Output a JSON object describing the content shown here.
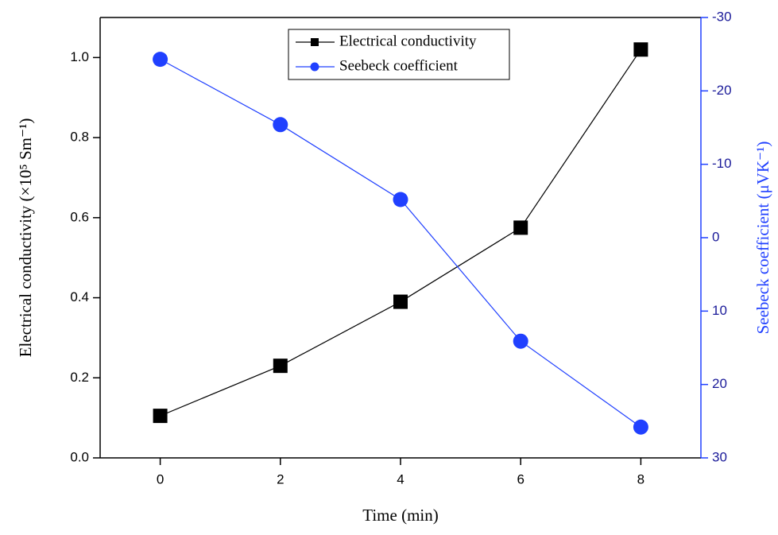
{
  "chart_data": {
    "type": "line",
    "x_label": "Time (min)",
    "y_label": "Electrical conductivity (×10⁵ Sm⁻¹)",
    "y2_label": "Seebeck coefficient (μVK⁻¹)",
    "x": [
      0,
      2,
      4,
      6,
      8
    ],
    "series": [
      {
        "name": "Electrical conductivity",
        "color": "#000000",
        "marker": "square",
        "values": [
          0.105,
          0.23,
          0.39,
          0.575,
          1.02
        ]
      },
      {
        "name": "Seebeck coefficient",
        "color": "#2040ff",
        "marker": "circle",
        "axis": "y2",
        "values": [
          -24.3,
          -15.4,
          -5.2,
          14.1,
          25.8
        ]
      }
    ],
    "xlim": [
      -1,
      9
    ],
    "xticks": [
      0,
      2,
      4,
      6,
      8
    ],
    "ylim": [
      0,
      1.1
    ],
    "yticks": [
      {
        "value": 0,
        "label": "0.0"
      },
      0.2,
      0.4,
      0.6,
      0.8,
      {
        "value": 1,
        "label": "1.0"
      }
    ],
    "y2lim": [
      30,
      -30
    ],
    "y2ticks": [
      -30,
      -20,
      -10,
      0,
      10,
      20,
      30
    ],
    "y2_color": "#2040ff",
    "legend": "top center"
  }
}
